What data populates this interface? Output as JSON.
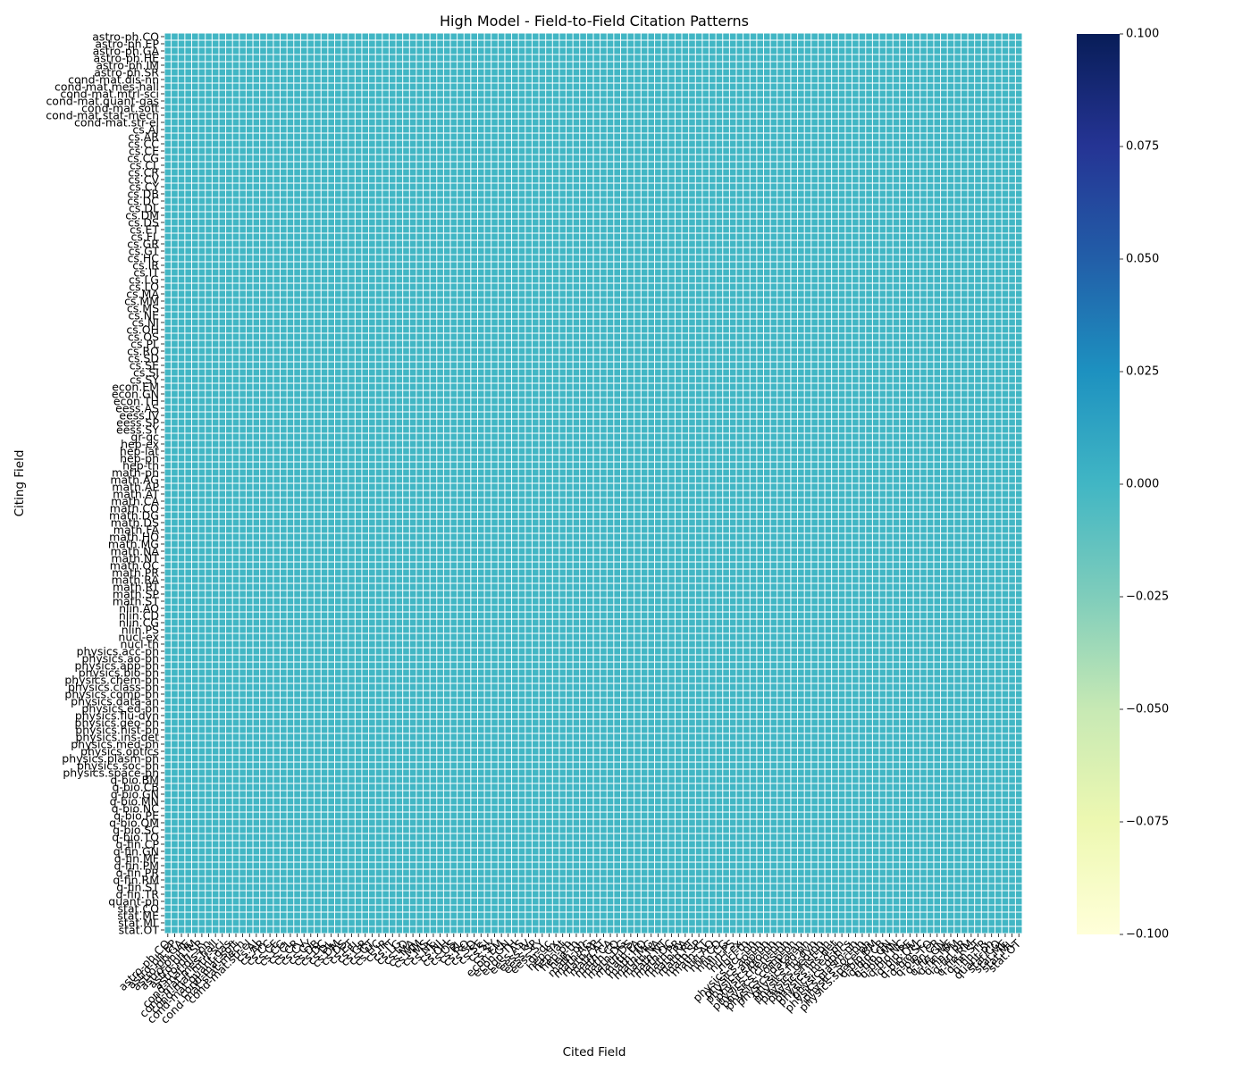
{
  "chart_data": {
    "type": "heatmap",
    "title": "High Model - Field-to-Field Citation Patterns",
    "xlabel": "Cited Field",
    "ylabel": "Citing Field",
    "fields": [
      "astro-ph.CO",
      "astro-ph.EP",
      "astro-ph.GA",
      "astro-ph.HE",
      "astro-ph.IM",
      "astro-ph.SR",
      "cond-mat.dis-nn",
      "cond-mat.mes-hall",
      "cond-mat.mtrl-sci",
      "cond-mat.quant-gas",
      "cond-mat.soft",
      "cond-mat.stat-mech",
      "cond-mat.str-el",
      "cs.AI",
      "cs.AR",
      "cs.CC",
      "cs.CE",
      "cs.CG",
      "cs.CL",
      "cs.CR",
      "cs.CV",
      "cs.CY",
      "cs.DB",
      "cs.DC",
      "cs.DL",
      "cs.DM",
      "cs.DS",
      "cs.ET",
      "cs.FL",
      "cs.GR",
      "cs.GT",
      "cs.HC",
      "cs.IR",
      "cs.IT",
      "cs.LG",
      "cs.LO",
      "cs.MA",
      "cs.MM",
      "cs.MS",
      "cs.NE",
      "cs.NI",
      "cs.OH",
      "cs.OS",
      "cs.PL",
      "cs.RO",
      "cs.SD",
      "cs.SE",
      "cs.SI",
      "cs.SY",
      "econ.EM",
      "econ.GN",
      "econ.TH",
      "eess.AS",
      "eess.IV",
      "eess.SP",
      "eess.SY",
      "gr-qc",
      "hep-ex",
      "hep-lat",
      "hep-ph",
      "hep-th",
      "math-ph",
      "math.AG",
      "math.AP",
      "math.AT",
      "math.CA",
      "math.CO",
      "math.DG",
      "math.DS",
      "math.FA",
      "math.HO",
      "math.MG",
      "math.NA",
      "math.NT",
      "math.OC",
      "math.PR",
      "math.RA",
      "math.RT",
      "math.SP",
      "math.ST",
      "nlin.AO",
      "nlin.CD",
      "nlin.CG",
      "nlin.PS",
      "nucl-ex",
      "nucl-th",
      "physics.acc-ph",
      "physics.ao-ph",
      "physics.app-ph",
      "physics.bio-ph",
      "physics.chem-ph",
      "physics.class-ph",
      "physics.comp-ph",
      "physics.data-an",
      "physics.ed-ph",
      "physics.flu-dyn",
      "physics.geo-ph",
      "physics.hist-ph",
      "physics.ins-det",
      "physics.med-ph",
      "physics.optics",
      "physics.plasm-ph",
      "physics.soc-ph",
      "physics.space-ph",
      "q-bio.BM",
      "q-bio.CB",
      "q-bio.GN",
      "q-bio.MN",
      "q-bio.NC",
      "q-bio.PE",
      "q-bio.QM",
      "q-bio.SC",
      "q-bio.TO",
      "q-fin.CP",
      "q-fin.GN",
      "q-fin.MF",
      "q-fin.PM",
      "q-fin.PR",
      "q-fin.RM",
      "q-fin.ST",
      "q-fin.TR",
      "quant-ph",
      "stat.CO",
      "stat.ME",
      "stat.ML",
      "stat.OT"
    ],
    "fill_value": 0.0,
    "value_note": "all cells equal 0.0",
    "colorbar": {
      "range": [
        -0.1,
        0.1
      ],
      "ticks": [
        0.1,
        0.075,
        0.05,
        0.025,
        0.0,
        -0.025,
        -0.05,
        -0.075,
        -0.1
      ],
      "tick_labels": [
        "0.100",
        "0.075",
        "0.050",
        "0.025",
        "0.000",
        "−0.025",
        "−0.050",
        "−0.075",
        "−0.100"
      ],
      "colormap": "YlGnBu",
      "stops": [
        "#ffffd9",
        "#edf8b1",
        "#c7e9b4",
        "#7fcdbb",
        "#41b6c4",
        "#1d91c0",
        "#225ea8",
        "#253494",
        "#081d58"
      ]
    },
    "cell_color": "#41b6c4",
    "gridline_color": "#ffffff",
    "grid": true,
    "legend": "colorbar-right"
  }
}
